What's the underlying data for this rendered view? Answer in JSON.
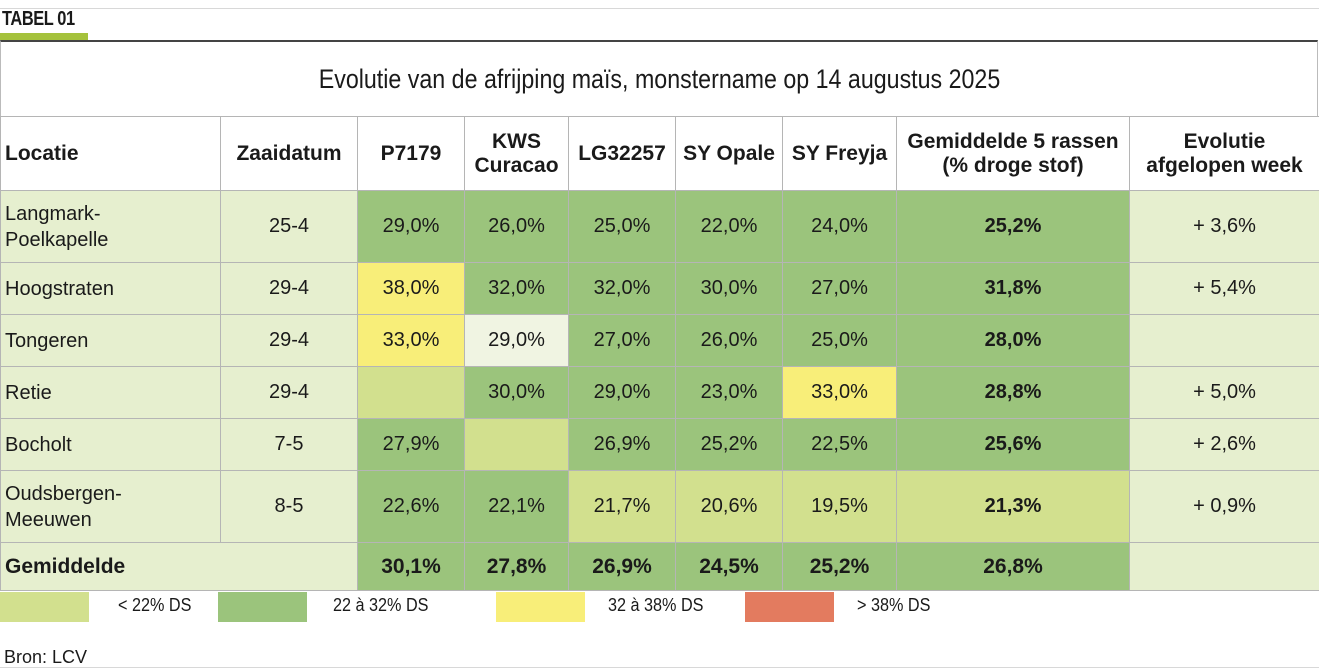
{
  "tag": "TABEL 01",
  "title": "Evolutie van de afrijping maïs, monstername op 14 augustus 2025",
  "columns": [
    "Locatie",
    "Zaaidatum",
    "P7179",
    "KWS\nCuracao",
    "LG32257",
    "SY Opale",
    "SY Freyja",
    "Gemiddelde 5 rassen\n(% droge stof)",
    "Evolutie\nafgelopen week"
  ],
  "rows": [
    {
      "locatie": "Langmark-\nPoelkapelle",
      "zaaidatum": "25-4",
      "p7179": "29,0%",
      "kws": "26,0%",
      "lg": "25,0%",
      "opale": "22,0%",
      "freyja": "24,0%",
      "gem": "25,2%",
      "evolutie": "+ 3,6%"
    },
    {
      "locatie": "Hoogstraten",
      "zaaidatum": "29-4",
      "p7179": "38,0%",
      "kws": "32,0%",
      "lg": "32,0%",
      "opale": "30,0%",
      "freyja": "27,0%",
      "gem": "31,8%",
      "evolutie": "+ 5,4%"
    },
    {
      "locatie": "Tongeren",
      "zaaidatum": "29-4",
      "p7179": "33,0%",
      "kws": "29,0%",
      "lg": "27,0%",
      "opale": "26,0%",
      "freyja": "25,0%",
      "gem": "28,0%",
      "evolutie": ""
    },
    {
      "locatie": "Retie",
      "zaaidatum": "29-4",
      "p7179": "",
      "kws": "30,0%",
      "lg": "29,0%",
      "opale": "23,0%",
      "freyja": "33,0%",
      "gem": "28,8%",
      "evolutie": "+ 5,0%"
    },
    {
      "locatie": "Bocholt",
      "zaaidatum": "7-5",
      "p7179": "27,9%",
      "kws": "",
      "lg": "26,9%",
      "opale": "25,2%",
      "freyja": "22,5%",
      "gem": "25,6%",
      "evolutie": "+ 2,6%"
    },
    {
      "locatie": "Oudsbergen-\nMeeuwen",
      "zaaidatum": "8-5",
      "p7179": "22,6%",
      "kws": "22,1%",
      "lg": "21,7%",
      "opale": "20,6%",
      "freyja": "19,5%",
      "gem": "21,3%",
      "evolutie": "+ 0,9%"
    }
  ],
  "average": {
    "label": "Gemiddelde",
    "p7179": "30,1%",
    "kws": "27,8%",
    "lg": "26,9%",
    "opale": "24,5%",
    "freyja": "25,2%",
    "gem": "26,8%"
  },
  "legend": [
    {
      "label": "< 22% DS",
      "color": "#d2e08e"
    },
    {
      "label": "22 à 32% DS",
      "color": "#9bc47c"
    },
    {
      "label": "32 à 38% DS",
      "color": "#f8ee79"
    },
    {
      "label": "> 38% DS",
      "color": "#e37b5f"
    }
  ],
  "source": "Bron: LCV"
}
